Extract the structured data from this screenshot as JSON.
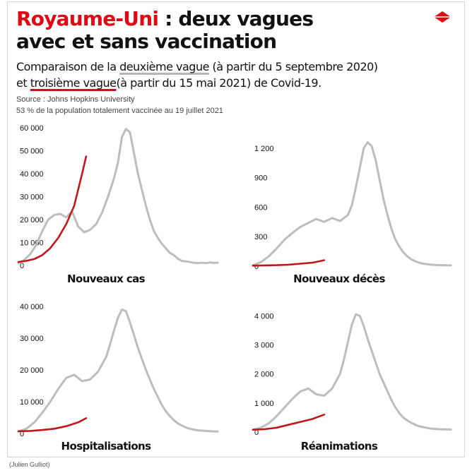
{
  "header": {
    "title_red": "Royaume-Uni",
    "title_rest": " : deux vagues",
    "title_line2": "avec et sans vaccination",
    "subtitle_a": "Comparaison de la ",
    "subtitle_b": "deuxième vague",
    "subtitle_c": " (à partir du 5 septembre 2020)",
    "subtitle_d": "et ",
    "subtitle_e": "troisième vague",
    "subtitle_f": "(à partir du 15 mai 2021) de Covid-19.",
    "source": "Source : Johns Hopkins University",
    "note": "53 % de la population totalement vaccinée au 19 juillet 2021"
  },
  "credit": "(Julien Gulliot)",
  "colors": {
    "second_wave": "#bdbdbd",
    "third_wave": "#c0171c",
    "title_red": "#e30613"
  },
  "logo_icon": "red-diamond-logo-icon",
  "chart_data": [
    {
      "type": "line",
      "title": "Nouveaux cas",
      "ylim": [
        0,
        60000
      ],
      "yticks": [
        0,
        10000,
        20000,
        30000,
        40000,
        50000,
        60000
      ],
      "ytick_labels": [
        "0",
        "10 000",
        "20 000",
        "30 000",
        "40 000",
        "50 000",
        "60 000"
      ],
      "series": [
        {
          "color": "#bdbdbd",
          "x": [
            0,
            3,
            6,
            9,
            12,
            15,
            18,
            21,
            24,
            27,
            30,
            33,
            36,
            39,
            42,
            45,
            48,
            50,
            52,
            54,
            56,
            58,
            60,
            62,
            64,
            66,
            68,
            70,
            72,
            74,
            76,
            78,
            80,
            82,
            84,
            86,
            88,
            90,
            92,
            94,
            96,
            98,
            100
          ],
          "values": [
            1000,
            2500,
            5000,
            9000,
            15000,
            20000,
            22000,
            22500,
            21000,
            23500,
            17000,
            14500,
            15500,
            18000,
            23000,
            30000,
            38000,
            45000,
            56000,
            59500,
            58000,
            49000,
            40000,
            33000,
            26000,
            20000,
            15000,
            12000,
            9500,
            7500,
            5500,
            4500,
            3000,
            2000,
            1800,
            1500,
            1200,
            1000,
            1200,
            1000,
            1300,
            1100,
            1200
          ]
        },
        {
          "color": "#c0171c",
          "x": [
            0,
            4,
            8,
            12,
            16,
            20,
            24,
            28,
            30,
            32,
            34
          ],
          "values": [
            1500,
            2000,
            2800,
            4500,
            7500,
            12000,
            18000,
            26000,
            33000,
            40000,
            47500
          ]
        }
      ]
    },
    {
      "type": "line",
      "title": "Nouveaux décès",
      "ylim": [
        0,
        1300
      ],
      "yticks": [
        0,
        300,
        600,
        900,
        1200
      ],
      "ytick_labels": [
        "0",
        "300",
        "600",
        "900",
        "1 200"
      ],
      "series": [
        {
          "color": "#bdbdbd",
          "x": [
            0,
            4,
            8,
            12,
            16,
            20,
            24,
            28,
            32,
            36,
            40,
            44,
            48,
            50,
            52,
            54,
            56,
            58,
            60,
            62,
            64,
            66,
            68,
            70,
            72,
            74,
            76,
            78,
            80,
            82,
            84,
            86,
            88,
            90,
            92,
            94,
            96,
            98,
            100
          ],
          "values": [
            10,
            40,
            100,
            180,
            270,
            340,
            400,
            440,
            480,
            450,
            490,
            460,
            520,
            620,
            800,
            1000,
            1200,
            1260,
            1220,
            1080,
            880,
            680,
            520,
            380,
            270,
            200,
            140,
            100,
            70,
            50,
            35,
            25,
            20,
            15,
            12,
            10,
            10,
            8,
            8
          ]
        },
        {
          "color": "#c0171c",
          "x": [
            0,
            6,
            12,
            18,
            24,
            30,
            36
          ],
          "values": [
            5,
            8,
            10,
            15,
            25,
            35,
            60
          ]
        }
      ]
    },
    {
      "type": "line",
      "title": "Hospitalisations",
      "ylim": [
        0,
        40000
      ],
      "yticks": [
        0,
        10000,
        20000,
        30000,
        40000
      ],
      "ytick_labels": [
        "0",
        "10 000",
        "20 000",
        "30 000",
        "40 000"
      ],
      "series": [
        {
          "color": "#bdbdbd",
          "x": [
            0,
            4,
            8,
            12,
            16,
            20,
            24,
            28,
            32,
            36,
            40,
            44,
            46,
            48,
            50,
            52,
            54,
            56,
            58,
            60,
            62,
            64,
            66,
            68,
            70,
            72,
            74,
            76,
            78,
            80,
            82,
            84,
            86,
            88,
            90,
            92,
            94,
            96,
            98,
            100
          ],
          "values": [
            600,
            1500,
            3500,
            6500,
            10000,
            14000,
            17500,
            18500,
            16500,
            17000,
            19500,
            24000,
            28000,
            32500,
            36500,
            39000,
            38500,
            35000,
            31000,
            27000,
            23500,
            20000,
            17000,
            14000,
            11500,
            9000,
            7000,
            5500,
            4200,
            3200,
            2500,
            1900,
            1500,
            1200,
            1000,
            900,
            800,
            700,
            650,
            600
          ]
        },
        {
          "color": "#c0171c",
          "x": [
            0,
            6,
            12,
            18,
            24,
            30,
            34
          ],
          "values": [
            700,
            800,
            1100,
            1500,
            2300,
            3500,
            4800
          ]
        }
      ]
    },
    {
      "type": "line",
      "title": "Réanimations",
      "ylim": [
        0,
        4300
      ],
      "yticks": [
        0,
        1000,
        2000,
        3000,
        4000
      ],
      "ytick_labels": [
        "0",
        "1 000",
        "2 000",
        "3 000",
        "4 000"
      ],
      "series": [
        {
          "color": "#bdbdbd",
          "x": [
            0,
            4,
            8,
            12,
            16,
            20,
            24,
            28,
            32,
            36,
            40,
            44,
            46,
            48,
            50,
            52,
            54,
            56,
            58,
            60,
            62,
            64,
            66,
            68,
            70,
            72,
            74,
            76,
            78,
            80,
            82,
            84,
            86,
            88,
            90,
            92,
            94,
            96,
            98,
            100
          ],
          "values": [
            80,
            150,
            300,
            550,
            850,
            1150,
            1400,
            1500,
            1300,
            1250,
            1500,
            2000,
            2500,
            3100,
            3700,
            4050,
            4000,
            3650,
            3200,
            2800,
            2400,
            2000,
            1700,
            1400,
            1100,
            850,
            650,
            500,
            400,
            320,
            250,
            200,
            170,
            140,
            120,
            110,
            100,
            95,
            90,
            85
          ]
        },
        {
          "color": "#c0171c",
          "x": [
            0,
            6,
            12,
            18,
            24,
            30,
            36
          ],
          "values": [
            80,
            100,
            150,
            250,
            350,
            450,
            600
          ]
        }
      ]
    }
  ]
}
